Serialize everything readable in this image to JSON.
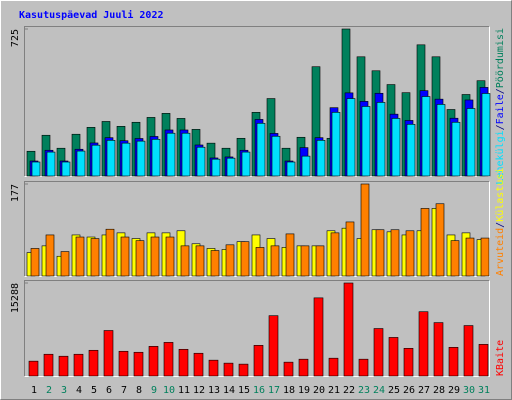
{
  "chart_data": [
    {
      "type": "bar",
      "title": "Kasutuspäevad Juuli 2022",
      "categories": [
        "1",
        "2",
        "3",
        "4",
        "5",
        "6",
        "7",
        "8",
        "9",
        "10",
        "11",
        "12",
        "13",
        "14",
        "15",
        "16",
        "17",
        "18",
        "19",
        "20",
        "21",
        "22",
        "23",
        "24",
        "25",
        "26",
        "27",
        "28",
        "29",
        "30",
        "31"
      ],
      "category_colors": [
        "#000000",
        "#00805c",
        "#00805c",
        "#000000",
        "#000000",
        "#000000",
        "#000000",
        "#000000",
        "#00805c",
        "#00805c",
        "#000000",
        "#000000",
        "#000000",
        "#000000",
        "#000000",
        "#00805c",
        "#00805c",
        "#000000",
        "#000000",
        "#000000",
        "#000000",
        "#000000",
        "#00805c",
        "#00805c",
        "#000000",
        "#000000",
        "#000000",
        "#000000",
        "#000000",
        "#00805c",
        "#00805c"
      ],
      "legend_separator": "/",
      "ylim": [
        0,
        725
      ],
      "yticks": [
        725
      ],
      "series": [
        {
          "name": "Pöördumisi",
          "color": "#00805c",
          "values": [
            122,
            201,
            137,
            206,
            240,
            269,
            245,
            265,
            289,
            309,
            284,
            230,
            162,
            137,
            186,
            314,
            382,
            137,
            191,
            539,
            186,
            725,
            588,
            519,
            451,
            411,
            647,
            588,
            328,
            402,
            470
          ]
        },
        {
          "name": "Faile",
          "color": "#0000ff",
          "values": [
            74,
            127,
            74,
            132,
            163,
            189,
            174,
            185,
            195,
            227,
            227,
            153,
            89,
            94,
            127,
            279,
            210,
            74,
            140,
            189,
            337,
            410,
            368,
            408,
            305,
            274,
            421,
            379,
            285,
            375,
            437
          ]
        },
        {
          "name": "Lehekülgi",
          "color": "#00e0ff",
          "values": [
            69,
            118,
            69,
            123,
            152,
            176,
            162,
            172,
            181,
            211,
            211,
            142,
            83,
            88,
            118,
            260,
            196,
            69,
            98,
            176,
            314,
            382,
            343,
            363,
            284,
            255,
            392,
            353,
            265,
            333,
            407
          ]
        }
      ]
    },
    {
      "type": "bar",
      "ylim": [
        0,
        177
      ],
      "yticks": [
        177
      ],
      "series": [
        {
          "name": "Külastusi",
          "color": "#ffff00",
          "values": [
            45,
            58,
            38,
            79,
            75,
            79,
            83,
            72,
            83,
            83,
            87,
            62,
            53,
            51,
            66,
            79,
            72,
            55,
            58,
            58,
            87,
            92,
            72,
            89,
            85,
            79,
            87,
            130,
            79,
            83,
            70
          ]
        },
        {
          "name": "Arvuteid",
          "color": "#ff8000",
          "values": [
            53,
            79,
            47,
            75,
            72,
            90,
            75,
            68,
            75,
            75,
            58,
            58,
            49,
            60,
            66,
            55,
            58,
            81,
            58,
            58,
            83,
            104,
            177,
            89,
            89,
            87,
            130,
            139,
            68,
            73,
            73
          ]
        }
      ]
    },
    {
      "type": "bar",
      "ylim": [
        0,
        15288
      ],
      "yticks": [
        15288
      ],
      "series": [
        {
          "name": "KBaite",
          "color": "#ff0000",
          "values": [
            2439,
            3577,
            3252,
            3577,
            4228,
            7480,
            4065,
            3902,
            4878,
            5528,
            4390,
            3740,
            2602,
            2114,
            1951,
            5041,
            9919,
            2276,
            2764,
            12845,
            2927,
            15288,
            2764,
            7805,
            6341,
            4553,
            10569,
            8780,
            4715,
            8293,
            5203
          ]
        }
      ]
    }
  ]
}
